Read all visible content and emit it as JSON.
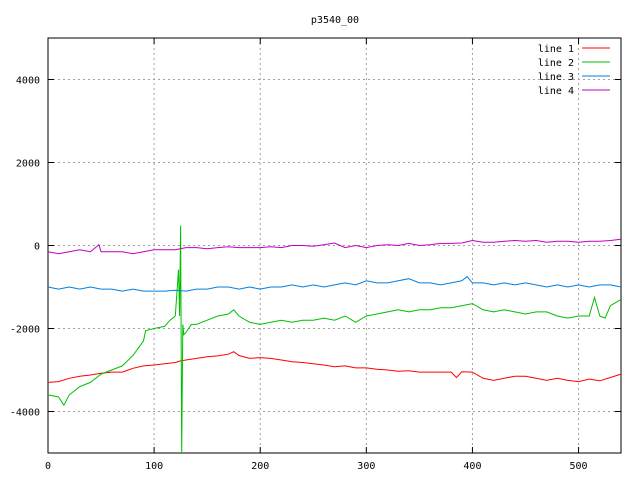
{
  "chart_data": {
    "type": "line",
    "title": "p3540_00",
    "xlabel": "",
    "ylabel": "",
    "xlim": [
      0,
      540
    ],
    "ylim": [
      -5000,
      5000
    ],
    "x_ticks": [
      0,
      100,
      200,
      300,
      400,
      500
    ],
    "y_ticks": [
      -4000,
      -2000,
      0,
      2000,
      4000
    ],
    "grid": true,
    "legend_position": "top-right",
    "series": [
      {
        "name": "line 1",
        "color": "#ff0000",
        "points": [
          [
            0,
            -3300
          ],
          [
            10,
            -3280
          ],
          [
            20,
            -3200
          ],
          [
            30,
            -3150
          ],
          [
            40,
            -3120
          ],
          [
            50,
            -3080
          ],
          [
            60,
            -3050
          ],
          [
            70,
            -3050
          ],
          [
            80,
            -2960
          ],
          [
            90,
            -2900
          ],
          [
            100,
            -2880
          ],
          [
            110,
            -2850
          ],
          [
            120,
            -2820
          ],
          [
            125,
            -2780
          ],
          [
            130,
            -2760
          ],
          [
            140,
            -2720
          ],
          [
            150,
            -2680
          ],
          [
            160,
            -2660
          ],
          [
            170,
            -2620
          ],
          [
            175,
            -2560
          ],
          [
            180,
            -2650
          ],
          [
            190,
            -2720
          ],
          [
            200,
            -2700
          ],
          [
            210,
            -2720
          ],
          [
            220,
            -2760
          ],
          [
            230,
            -2800
          ],
          [
            240,
            -2820
          ],
          [
            250,
            -2850
          ],
          [
            260,
            -2880
          ],
          [
            270,
            -2920
          ],
          [
            280,
            -2900
          ],
          [
            290,
            -2950
          ],
          [
            300,
            -2950
          ],
          [
            310,
            -2980
          ],
          [
            320,
            -3000
          ],
          [
            330,
            -3030
          ],
          [
            340,
            -3020
          ],
          [
            350,
            -3050
          ],
          [
            360,
            -3050
          ],
          [
            370,
            -3050
          ],
          [
            380,
            -3050
          ],
          [
            385,
            -3180
          ],
          [
            390,
            -3040
          ],
          [
            400,
            -3050
          ],
          [
            410,
            -3200
          ],
          [
            420,
            -3250
          ],
          [
            430,
            -3200
          ],
          [
            440,
            -3150
          ],
          [
            450,
            -3150
          ],
          [
            460,
            -3200
          ],
          [
            470,
            -3250
          ],
          [
            480,
            -3200
          ],
          [
            490,
            -3250
          ],
          [
            500,
            -3280
          ],
          [
            510,
            -3220
          ],
          [
            520,
            -3260
          ],
          [
            530,
            -3180
          ],
          [
            540,
            -3100
          ]
        ]
      },
      {
        "name": "line 2",
        "color": "#00c000",
        "points": [
          [
            0,
            -3600
          ],
          [
            10,
            -3650
          ],
          [
            15,
            -3850
          ],
          [
            20,
            -3600
          ],
          [
            30,
            -3400
          ],
          [
            40,
            -3300
          ],
          [
            50,
            -3100
          ],
          [
            60,
            -3000
          ],
          [
            70,
            -2900
          ],
          [
            80,
            -2650
          ],
          [
            90,
            -2300
          ],
          [
            92,
            -2050
          ],
          [
            100,
            -2000
          ],
          [
            110,
            -1950
          ],
          [
            115,
            -1800
          ],
          [
            120,
            -1700
          ],
          [
            123,
            -580
          ],
          [
            124,
            -1700
          ],
          [
            125,
            480
          ],
          [
            126,
            -5000
          ],
          [
            127,
            -1900
          ],
          [
            128,
            -2150
          ],
          [
            130,
            -2100
          ],
          [
            135,
            -1900
          ],
          [
            140,
            -1900
          ],
          [
            150,
            -1800
          ],
          [
            160,
            -1700
          ],
          [
            170,
            -1650
          ],
          [
            175,
            -1550
          ],
          [
            180,
            -1700
          ],
          [
            190,
            -1850
          ],
          [
            200,
            -1900
          ],
          [
            210,
            -1850
          ],
          [
            220,
            -1800
          ],
          [
            230,
            -1850
          ],
          [
            240,
            -1800
          ],
          [
            250,
            -1800
          ],
          [
            260,
            -1750
          ],
          [
            270,
            -1800
          ],
          [
            280,
            -1700
          ],
          [
            290,
            -1850
          ],
          [
            300,
            -1700
          ],
          [
            310,
            -1650
          ],
          [
            320,
            -1600
          ],
          [
            330,
            -1550
          ],
          [
            340,
            -1600
          ],
          [
            350,
            -1550
          ],
          [
            360,
            -1550
          ],
          [
            370,
            -1500
          ],
          [
            380,
            -1500
          ],
          [
            390,
            -1450
          ],
          [
            400,
            -1400
          ],
          [
            410,
            -1550
          ],
          [
            420,
            -1600
          ],
          [
            430,
            -1550
          ],
          [
            440,
            -1600
          ],
          [
            450,
            -1650
          ],
          [
            460,
            -1600
          ],
          [
            470,
            -1600
          ],
          [
            480,
            -1700
          ],
          [
            490,
            -1750
          ],
          [
            500,
            -1700
          ],
          [
            510,
            -1700
          ],
          [
            515,
            -1250
          ],
          [
            520,
            -1700
          ],
          [
            525,
            -1750
          ],
          [
            530,
            -1450
          ],
          [
            540,
            -1300
          ]
        ]
      },
      {
        "name": "line 3",
        "color": "#0080e0",
        "points": [
          [
            0,
            -1000
          ],
          [
            10,
            -1050
          ],
          [
            20,
            -1000
          ],
          [
            30,
            -1050
          ],
          [
            40,
            -1000
          ],
          [
            50,
            -1050
          ],
          [
            60,
            -1050
          ],
          [
            70,
            -1100
          ],
          [
            80,
            -1050
          ],
          [
            90,
            -1100
          ],
          [
            100,
            -1100
          ],
          [
            110,
            -1100
          ],
          [
            120,
            -1080
          ],
          [
            130,
            -1100
          ],
          [
            140,
            -1050
          ],
          [
            150,
            -1050
          ],
          [
            160,
            -1000
          ],
          [
            170,
            -1000
          ],
          [
            180,
            -1050
          ],
          [
            190,
            -1000
          ],
          [
            200,
            -1050
          ],
          [
            210,
            -1000
          ],
          [
            220,
            -1000
          ],
          [
            230,
            -950
          ],
          [
            240,
            -1000
          ],
          [
            250,
            -950
          ],
          [
            260,
            -1000
          ],
          [
            270,
            -950
          ],
          [
            280,
            -900
          ],
          [
            290,
            -950
          ],
          [
            300,
            -850
          ],
          [
            310,
            -900
          ],
          [
            320,
            -900
          ],
          [
            330,
            -850
          ],
          [
            340,
            -800
          ],
          [
            350,
            -900
          ],
          [
            360,
            -900
          ],
          [
            370,
            -950
          ],
          [
            380,
            -900
          ],
          [
            390,
            -850
          ],
          [
            395,
            -750
          ],
          [
            400,
            -900
          ],
          [
            410,
            -900
          ],
          [
            420,
            -950
          ],
          [
            430,
            -900
          ],
          [
            440,
            -950
          ],
          [
            450,
            -900
          ],
          [
            460,
            -950
          ],
          [
            470,
            -1000
          ],
          [
            480,
            -950
          ],
          [
            490,
            -1000
          ],
          [
            500,
            -950
          ],
          [
            510,
            -1000
          ],
          [
            520,
            -950
          ],
          [
            530,
            -950
          ],
          [
            540,
            -1000
          ]
        ]
      },
      {
        "name": "line 4",
        "color": "#c000c0",
        "points": [
          [
            0,
            -150
          ],
          [
            10,
            -200
          ],
          [
            20,
            -150
          ],
          [
            30,
            -100
          ],
          [
            40,
            -150
          ],
          [
            48,
            20
          ],
          [
            50,
            -150
          ],
          [
            60,
            -150
          ],
          [
            70,
            -150
          ],
          [
            80,
            -200
          ],
          [
            90,
            -150
          ],
          [
            100,
            -100
          ],
          [
            110,
            -100
          ],
          [
            120,
            -100
          ],
          [
            130,
            -50
          ],
          [
            140,
            -50
          ],
          [
            150,
            -80
          ],
          [
            160,
            -50
          ],
          [
            170,
            -30
          ],
          [
            180,
            -50
          ],
          [
            190,
            -50
          ],
          [
            200,
            -50
          ],
          [
            210,
            -30
          ],
          [
            220,
            -50
          ],
          [
            230,
            0
          ],
          [
            240,
            0
          ],
          [
            250,
            -20
          ],
          [
            260,
            20
          ],
          [
            270,
            60
          ],
          [
            280,
            -50
          ],
          [
            290,
            0
          ],
          [
            300,
            -50
          ],
          [
            310,
            0
          ],
          [
            320,
            20
          ],
          [
            330,
            0
          ],
          [
            340,
            50
          ],
          [
            350,
            0
          ],
          [
            360,
            20
          ],
          [
            370,
            50
          ],
          [
            380,
            50
          ],
          [
            390,
            60
          ],
          [
            400,
            120
          ],
          [
            410,
            80
          ],
          [
            420,
            80
          ],
          [
            430,
            100
          ],
          [
            440,
            120
          ],
          [
            450,
            100
          ],
          [
            460,
            120
          ],
          [
            470,
            80
          ],
          [
            480,
            100
          ],
          [
            490,
            100
          ],
          [
            500,
            80
          ],
          [
            510,
            100
          ],
          [
            520,
            100
          ],
          [
            530,
            120
          ],
          [
            540,
            150
          ]
        ]
      }
    ]
  }
}
